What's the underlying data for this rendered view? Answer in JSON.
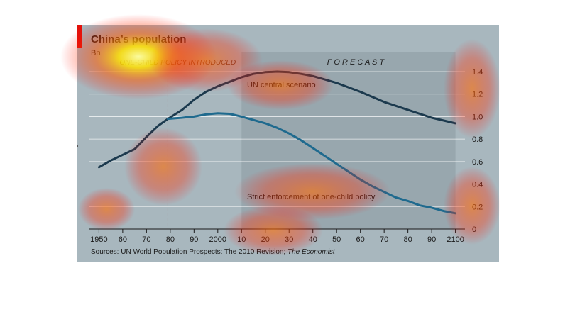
{
  "chart_data": {
    "type": "line",
    "title": "China’s population",
    "unit_label": "Bn",
    "x_ticks": [
      "1950",
      "60",
      "70",
      "80",
      "90",
      "2000",
      "10",
      "20",
      "30",
      "40",
      "50",
      "60",
      "70",
      "80",
      "90",
      "2100"
    ],
    "y_ticks": [
      "0",
      "0.2",
      "0.4",
      "0.6",
      "0.8",
      "1.0",
      "1.2",
      "1.4"
    ],
    "xlim": [
      1946,
      2104
    ],
    "ylim": [
      0,
      1.4
    ],
    "grid": true,
    "y_axis_side": "right",
    "forecast_region": {
      "start": 2010,
      "end": 2100,
      "label": "F O R E C A S T"
    },
    "policy_marker": {
      "x": 1979,
      "label": "ONE-CHILD POLICY INTRODUCED"
    },
    "series": [
      {
        "name": "UN central scenario",
        "color": "#1c3a4e",
        "x": [
          1950,
          1955,
          1960,
          1965,
          1970,
          1975,
          1979,
          1985,
          1990,
          1995,
          2000,
          2005,
          2010,
          2015,
          2020,
          2025,
          2030,
          2035,
          2040,
          2045,
          2050,
          2060,
          2070,
          2080,
          2090,
          2100
        ],
        "y": [
          0.55,
          0.61,
          0.66,
          0.71,
          0.82,
          0.92,
          0.98,
          1.06,
          1.15,
          1.22,
          1.27,
          1.31,
          1.35,
          1.38,
          1.395,
          1.4,
          1.395,
          1.38,
          1.36,
          1.33,
          1.3,
          1.22,
          1.13,
          1.06,
          0.99,
          0.94
        ]
      },
      {
        "name": "Strict enforcement of one-child policy",
        "color": "#1f6a8e",
        "x": [
          1979,
          1985,
          1990,
          1995,
          2000,
          2005,
          2010,
          2015,
          2020,
          2025,
          2030,
          2035,
          2040,
          2045,
          2050,
          2055,
          2060,
          2065,
          2070,
          2075,
          2080,
          2085,
          2090,
          2095,
          2100
        ],
        "y": [
          0.98,
          0.99,
          1.0,
          1.02,
          1.03,
          1.025,
          1.0,
          0.97,
          0.94,
          0.9,
          0.85,
          0.79,
          0.72,
          0.65,
          0.58,
          0.51,
          0.44,
          0.38,
          0.33,
          0.28,
          0.25,
          0.21,
          0.19,
          0.16,
          0.14
        ]
      }
    ],
    "source": "Sources: UN World Population Prospects: The 2010 Revision;",
    "source_italic": "The Economist",
    "colors": {
      "accent": "#e3120b",
      "panel": "#a8b7be",
      "forecast_panel": "#98a7ae",
      "grid": "#ffffff"
    }
  }
}
